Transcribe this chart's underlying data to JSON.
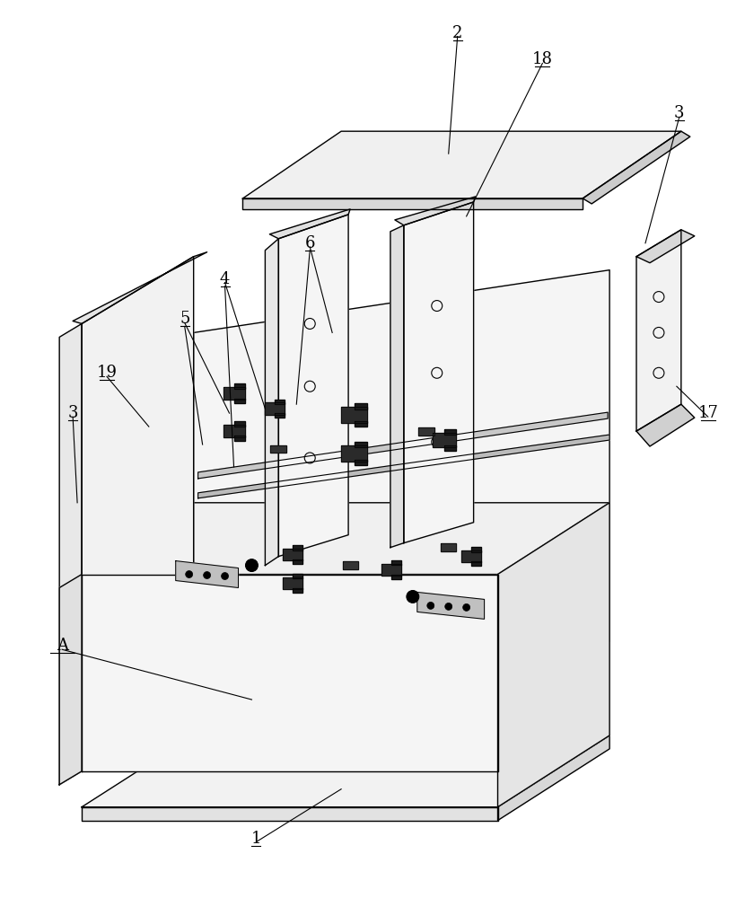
{
  "bg_color": "#ffffff",
  "line_color": "#000000",
  "lw": 1.0,
  "thin_lw": 0.7,
  "fill_top": "#f2f2f2",
  "fill_front": "#e5e5e5",
  "fill_side": "#d8d8d8",
  "fill_back": "#eeeeee",
  "fill_dark": "#282828",
  "annotation_fs": 13
}
